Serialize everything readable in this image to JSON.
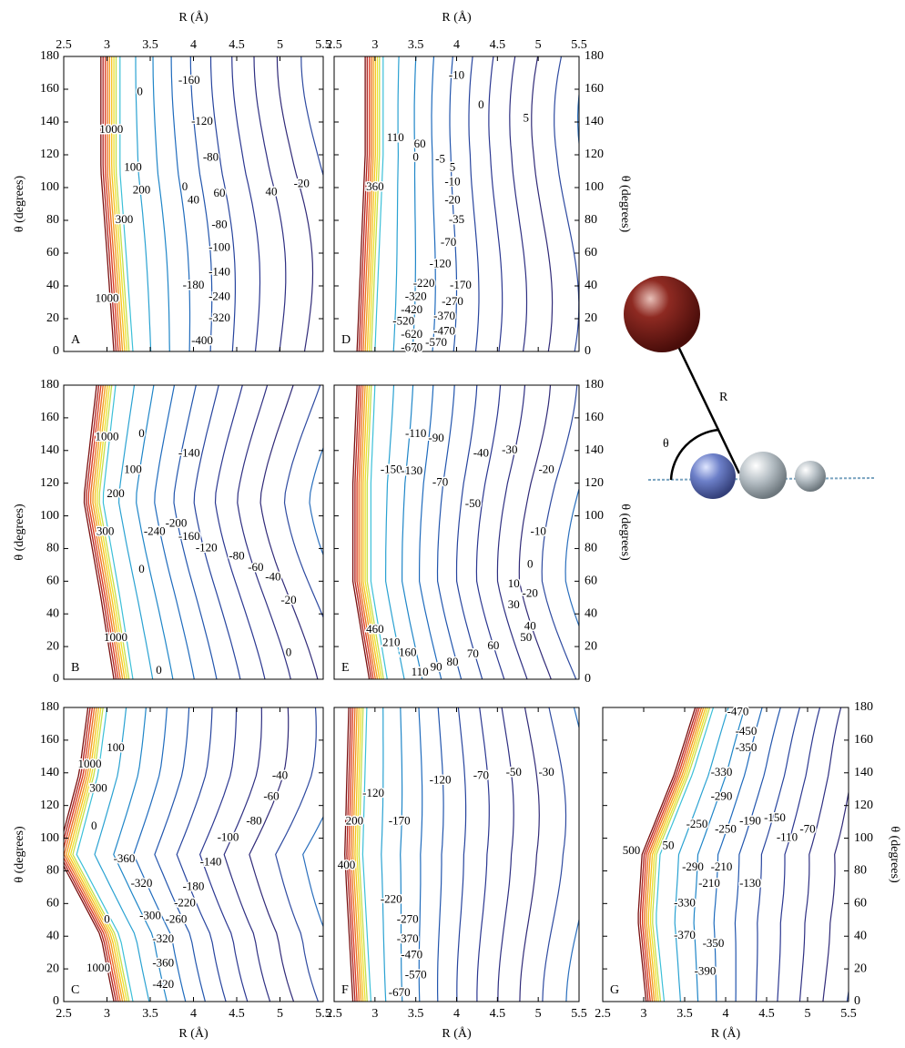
{
  "chart_data": [
    {
      "type": "contour",
      "panel": "A",
      "xlabel": "R (Å)",
      "ylabel": "θ (degrees)",
      "xaxis": "top",
      "yaxis": "left",
      "xlim": [
        2.5,
        5.5
      ],
      "ylim": [
        0,
        180
      ],
      "xticks": [
        2.5,
        3,
        3.5,
        4,
        4.5,
        5,
        5.5
      ],
      "yticks": [
        0,
        20,
        40,
        60,
        80,
        100,
        120,
        140,
        160,
        180
      ],
      "levels": [
        -160,
        -120,
        -80,
        0,
        1000,
        100,
        200,
        0,
        40,
        60,
        40,
        -20,
        300,
        -80,
        -100,
        -140,
        -180,
        -240,
        -320,
        -400,
        1000
      ]
    },
    {
      "type": "contour",
      "panel": "D",
      "xlabel": "R (Å)",
      "ylabel": "θ (degrees)",
      "xaxis": "top",
      "yaxis": "right",
      "xlim": [
        2.5,
        5.5
      ],
      "ylim": [
        0,
        180
      ],
      "xticks": [
        2.5,
        3,
        3.5,
        4,
        4.5,
        5,
        5.5
      ],
      "yticks": [
        0,
        20,
        40,
        60,
        80,
        100,
        120,
        140,
        160,
        180
      ],
      "levels": [
        -10,
        0,
        5,
        110,
        60,
        0,
        -5,
        5,
        360,
        -10,
        -20,
        -35,
        -70,
        -120,
        -220,
        -170,
        -320,
        -270,
        -420,
        -370,
        -520,
        -470,
        -620,
        -570,
        -670
      ]
    },
    {
      "type": "contour",
      "panel": "B",
      "ylabel": "θ (degrees)",
      "xaxis": "none",
      "yaxis": "left",
      "xlim": [
        2.5,
        5.5
      ],
      "ylim": [
        0,
        180
      ],
      "yticks": [
        0,
        20,
        40,
        60,
        80,
        100,
        120,
        140,
        160,
        180
      ],
      "levels": [
        1000,
        0,
        100,
        -140,
        200,
        300,
        -240,
        -200,
        -160,
        -120,
        -80,
        -60,
        -40,
        0,
        -20,
        1000,
        0,
        0
      ]
    },
    {
      "type": "contour",
      "panel": "E",
      "ylabel": "θ (degrees)",
      "xaxis": "none",
      "yaxis": "right",
      "xlim": [
        2.5,
        5.5
      ],
      "ylim": [
        0,
        180
      ],
      "yticks": [
        0,
        20,
        40,
        60,
        80,
        100,
        120,
        140,
        160,
        180
      ],
      "levels": [
        -110,
        -90,
        -150,
        -130,
        -70,
        -40,
        -30,
        -50,
        -20,
        -10,
        0,
        10,
        -20,
        30,
        40,
        50,
        60,
        70,
        80,
        90,
        110,
        460,
        210,
        160
      ]
    },
    {
      "type": "contour",
      "panel": "C",
      "xlabel": "R (Å)",
      "ylabel": "θ (degrees)",
      "xaxis": "bottom",
      "yaxis": "left",
      "xlim": [
        2.5,
        5.5
      ],
      "ylim": [
        0,
        180
      ],
      "xticks": [
        2.5,
        3,
        3.5,
        4,
        4.5,
        5,
        5.5
      ],
      "yticks": [
        0,
        20,
        40,
        60,
        80,
        100,
        120,
        140,
        160,
        180
      ],
      "levels": [
        1000,
        100,
        300,
        0,
        -360,
        -320,
        -40,
        -60,
        -80,
        -100,
        -140,
        -180,
        -220,
        -260,
        -300,
        -320,
        -360,
        -420,
        0,
        1000
      ]
    },
    {
      "type": "contour",
      "panel": "F",
      "xlabel": "R (Å)",
      "xaxis": "bottom",
      "yaxis": "none",
      "xlim": [
        2.5,
        5.5
      ],
      "ylim": [
        0,
        180
      ],
      "xticks": [
        2.5,
        3,
        3.5,
        4,
        4.5,
        5,
        5.5
      ],
      "levels": [
        -120,
        200,
        400,
        -120,
        -170,
        -70,
        -50,
        -30,
        -220,
        -270,
        -370,
        -470,
        -570,
        -670
      ]
    },
    {
      "type": "contour",
      "panel": "G",
      "xlabel": "R (Å)",
      "ylabel": "θ (degrees)",
      "xaxis": "bottom",
      "yaxis": "right",
      "xlim": [
        2.5,
        5.5
      ],
      "ylim": [
        0,
        180
      ],
      "xticks": [
        2.5,
        3,
        3.5,
        4,
        4.5,
        5,
        5.5
      ],
      "yticks": [
        0,
        20,
        40,
        60,
        80,
        100,
        120,
        140,
        160,
        180
      ],
      "levels": [
        -470,
        -450,
        -350,
        -330,
        -290,
        -250,
        -250,
        -190,
        -150,
        -110,
        -70,
        500,
        50,
        -290,
        -210,
        -210,
        -130,
        -330,
        -370,
        -350,
        -390
      ]
    }
  ],
  "diagram": {
    "distance_label": "R",
    "angle_label": "θ"
  }
}
